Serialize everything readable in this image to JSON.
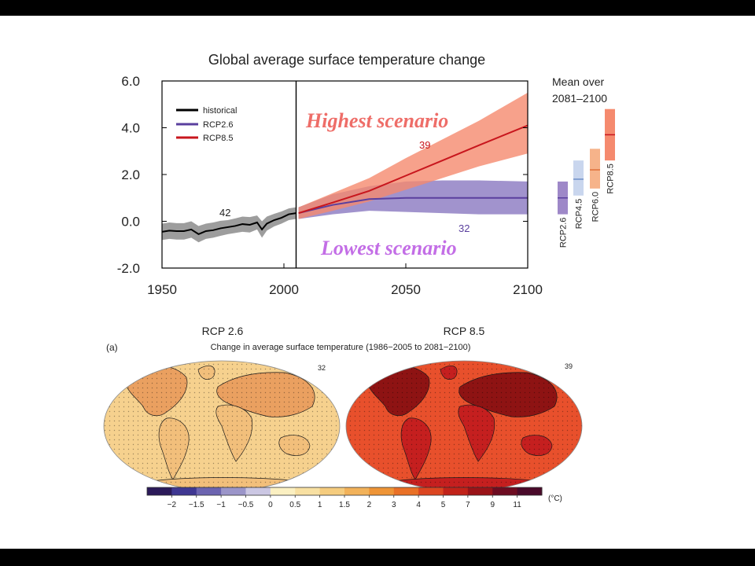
{
  "chart_data": [
    {
      "type": "line",
      "title": "Global average surface temperature change",
      "xlabel": "",
      "ylabel": "",
      "xlim": [
        1950,
        2100
      ],
      "ylim": [
        -2.0,
        6.0
      ],
      "x_ticks": [
        "1950",
        "2000",
        "2050",
        "2100"
      ],
      "y_ticks": [
        "-2.0",
        "0.0",
        "2.0",
        "4.0",
        "6.0"
      ],
      "divider_year": 2005,
      "grid": false,
      "legend_position": "top-left",
      "series": [
        {
          "name": "historical",
          "color": "#000000",
          "band_color": "#8c8c8c",
          "x": [
            1950,
            1953,
            1956,
            1959,
            1962,
            1965,
            1968,
            1971,
            1974,
            1977,
            1980,
            1983,
            1986,
            1989,
            1991,
            1993,
            1996,
            1999,
            2002,
            2005
          ],
          "values": [
            -0.45,
            -0.4,
            -0.42,
            -0.42,
            -0.35,
            -0.55,
            -0.42,
            -0.38,
            -0.3,
            -0.25,
            -0.2,
            -0.12,
            -0.15,
            -0.05,
            -0.35,
            -0.1,
            0.05,
            0.15,
            0.3,
            0.35
          ],
          "upper": [
            -0.1,
            -0.05,
            -0.08,
            -0.08,
            0.0,
            -0.2,
            -0.1,
            -0.05,
            0.02,
            0.05,
            0.12,
            0.2,
            0.18,
            0.25,
            0.0,
            0.2,
            0.32,
            0.42,
            0.55,
            0.6
          ],
          "lower": [
            -0.8,
            -0.75,
            -0.78,
            -0.78,
            -0.7,
            -0.9,
            -0.75,
            -0.7,
            -0.62,
            -0.55,
            -0.5,
            -0.45,
            -0.48,
            -0.35,
            -0.7,
            -0.4,
            -0.22,
            -0.1,
            0.05,
            0.1
          ]
        },
        {
          "name": "RCP2.6",
          "color": "#5a3f9e",
          "band_color": "#8a78c0",
          "x": [
            2006,
            2020,
            2035,
            2050,
            2065,
            2080,
            2100
          ],
          "values": [
            0.35,
            0.7,
            0.95,
            1.0,
            1.0,
            1.0,
            1.0
          ],
          "upper": [
            0.6,
            1.15,
            1.5,
            1.7,
            1.75,
            1.75,
            1.7
          ],
          "lower": [
            0.1,
            0.3,
            0.45,
            0.4,
            0.35,
            0.3,
            0.3
          ]
        },
        {
          "name": "RCP8.5",
          "color": "#c8161d",
          "band_color": "#f58a6e",
          "x": [
            2006,
            2020,
            2035,
            2050,
            2065,
            2080,
            2100
          ],
          "values": [
            0.35,
            0.8,
            1.3,
            1.95,
            2.6,
            3.25,
            4.1
          ],
          "upper": [
            0.6,
            1.2,
            1.85,
            2.7,
            3.5,
            4.3,
            5.5
          ],
          "lower": [
            0.1,
            0.45,
            0.85,
            1.35,
            1.85,
            2.35,
            2.9
          ]
        }
      ],
      "annotations": {
        "historical_models": "42",
        "rcp85_models": "39",
        "rcp26_models": "32",
        "highest": "Highest scenario",
        "lowest": "Lowest scenario",
        "highest_color": "#ee6d68",
        "lowest_color": "#c36ee6"
      },
      "side_panel": {
        "title_line1": "Mean over",
        "title_line2": "2081–2100",
        "bars": [
          {
            "label": "RCP2.6",
            "low": 0.3,
            "mean": 1.0,
            "high": 1.7,
            "color": "#9e88c8",
            "line": "#5a3f9e"
          },
          {
            "label": "RCP4.5",
            "low": 1.1,
            "mean": 1.8,
            "high": 2.6,
            "color": "#c9d6ee",
            "line": "#6f8fc8"
          },
          {
            "label": "RCP6.0",
            "low": 1.4,
            "mean": 2.2,
            "high": 3.1,
            "color": "#f6b38a",
            "line": "#e0703a"
          },
          {
            "label": "RCP8.5",
            "low": 2.6,
            "mean": 3.7,
            "high": 4.8,
            "color": "#f58a6e",
            "line": "#c8161d"
          }
        ]
      }
    },
    {
      "type": "map",
      "panel_label": "(a)",
      "title": "Change in average surface temperature (1986−2005 to 2081−2100)",
      "maps": [
        {
          "name": "RCP 2.6",
          "models": "32",
          "ocean": "#f6d18e",
          "land": "#f2bf7b",
          "hot": "#eaa060"
        },
        {
          "name": "RCP 8.5",
          "models": "39",
          "ocean": "#e8502c",
          "land": "#c51f1f",
          "hot": "#8e1313"
        }
      ],
      "colorbar": {
        "unit": "(°C)",
        "labels": [
          "−2",
          "−1.5",
          "−1",
          "−0.5",
          "0",
          "0.5",
          "1",
          "1.5",
          "2",
          "3",
          "4",
          "5",
          "7",
          "9",
          "11"
        ],
        "colors": [
          "#2b1a59",
          "#3f3792",
          "#6c64b0",
          "#9b95c9",
          "#cbc7e3",
          "#fbf0c2",
          "#f8e0a2",
          "#f5cc7e",
          "#f2b25a",
          "#ee9436",
          "#e97026",
          "#db4520",
          "#c12219",
          "#9a1318",
          "#6d0c21",
          "#4a0a2a"
        ]
      }
    }
  ]
}
